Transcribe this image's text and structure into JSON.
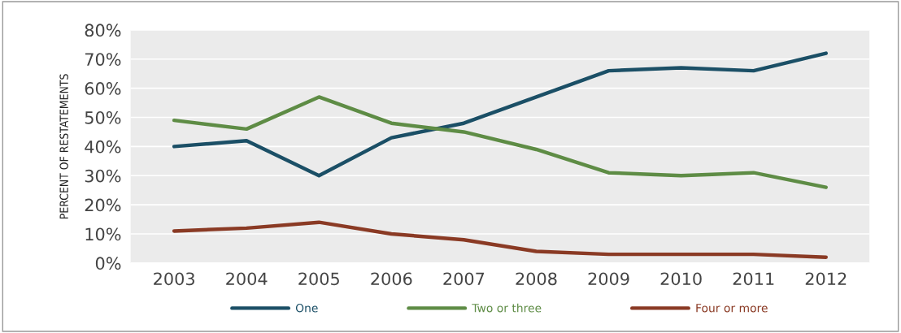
{
  "chart_data": {
    "type": "line",
    "ylabel": "PERCENT OF RESTATEMENTS",
    "categories": [
      "2003",
      "2004",
      "2005",
      "2006",
      "2007",
      "2008",
      "2009",
      "2010",
      "2011",
      "2012"
    ],
    "series": [
      {
        "name": "One",
        "color": "#1b4f66",
        "values": [
          40,
          42,
          30,
          43,
          48,
          57,
          66,
          67,
          66,
          72
        ]
      },
      {
        "name": "Two or three",
        "color": "#5e8c45",
        "values": [
          49,
          46,
          57,
          48,
          45,
          39,
          31,
          30,
          31,
          26
        ]
      },
      {
        "name": "Four or more",
        "color": "#8a3a24",
        "values": [
          11,
          12,
          14,
          10,
          8,
          4,
          3,
          3,
          3,
          2
        ]
      }
    ],
    "ylim": [
      0,
      80
    ],
    "yticks": [
      {
        "value": 0,
        "label": "0%"
      },
      {
        "value": 10,
        "label": "10%"
      },
      {
        "value": 20,
        "label": "20%"
      },
      {
        "value": 30,
        "label": "30%"
      },
      {
        "value": 40,
        "label": "40%"
      },
      {
        "value": 50,
        "label": "50%"
      },
      {
        "value": 60,
        "label": "60%"
      },
      {
        "value": 70,
        "label": "70%"
      },
      {
        "value": 80,
        "label": "80%"
      }
    ],
    "grid": "y",
    "legend": "bottom",
    "marker": "none",
    "line_style": "solid"
  }
}
